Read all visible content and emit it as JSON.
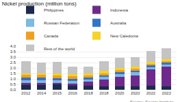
{
  "chart_data": {
    "type": "bar",
    "title": "Nickel production (million tons)",
    "annotations": [
      "Source: Energy Institute"
    ],
    "categories": [
      "2012",
      "2014",
      "2015",
      "2016",
      "2018",
      "2018",
      "2020",
      "2020",
      "2022",
      "2022"
    ],
    "series": [
      {
        "name": "Philippines",
        "color": "#1c2b4b",
        "values": [
          0.42,
          0.44,
          0.47,
          0.35,
          0.37,
          0.34,
          0.32,
          0.33,
          0.37,
          0.33
        ]
      },
      {
        "name": "Indonesia",
        "color": "#6d2a8c",
        "values": [
          0.23,
          0.18,
          0.13,
          0.2,
          0.35,
          0.6,
          0.85,
          1.0,
          1.5,
          1.8
        ]
      },
      {
        "name": "Russian Federation",
        "color": "#7db9e2",
        "values": [
          0.25,
          0.26,
          0.27,
          0.25,
          0.21,
          0.22,
          0.28,
          0.28,
          0.2,
          0.2
        ]
      },
      {
        "name": "Australia",
        "color": "#3474c4",
        "values": [
          0.24,
          0.24,
          0.22,
          0.2,
          0.18,
          0.17,
          0.16,
          0.17,
          0.15,
          0.16
        ]
      },
      {
        "name": "Canada",
        "color": "#f0a020",
        "values": [
          0.21,
          0.23,
          0.23,
          0.23,
          0.21,
          0.18,
          0.18,
          0.17,
          0.13,
          0.14
        ]
      },
      {
        "name": "New Caledonia",
        "color": "#f5d327",
        "values": [
          0.13,
          0.18,
          0.19,
          0.21,
          0.2,
          0.22,
          0.2,
          0.2,
          0.19,
          0.2
        ]
      },
      {
        "name": "Rest of the world",
        "color": "#c4c4c4",
        "values": [
          1.12,
          0.97,
          1.04,
          0.66,
          0.63,
          0.87,
          0.96,
          0.85,
          1.01,
          0.97
        ]
      }
    ],
    "ylim": [
      0,
      4
    ],
    "yticks": [
      {
        "value": 0,
        "label": "0.0"
      },
      {
        "value": 0.5,
        "label": "0.5"
      },
      {
        "value": 1,
        "label": "1.0"
      },
      {
        "value": 1.5,
        "label": "1.5"
      },
      {
        "value": 2,
        "label": "2.0"
      },
      {
        "value": 2.5,
        "label": "2.5"
      },
      {
        "value": 3,
        "label": "3.0"
      },
      {
        "value": 3.5,
        "label": "3.5"
      },
      {
        "value": 4,
        "label": "4.0"
      }
    ],
    "grid": true,
    "stacked": true,
    "legend": "top"
  }
}
